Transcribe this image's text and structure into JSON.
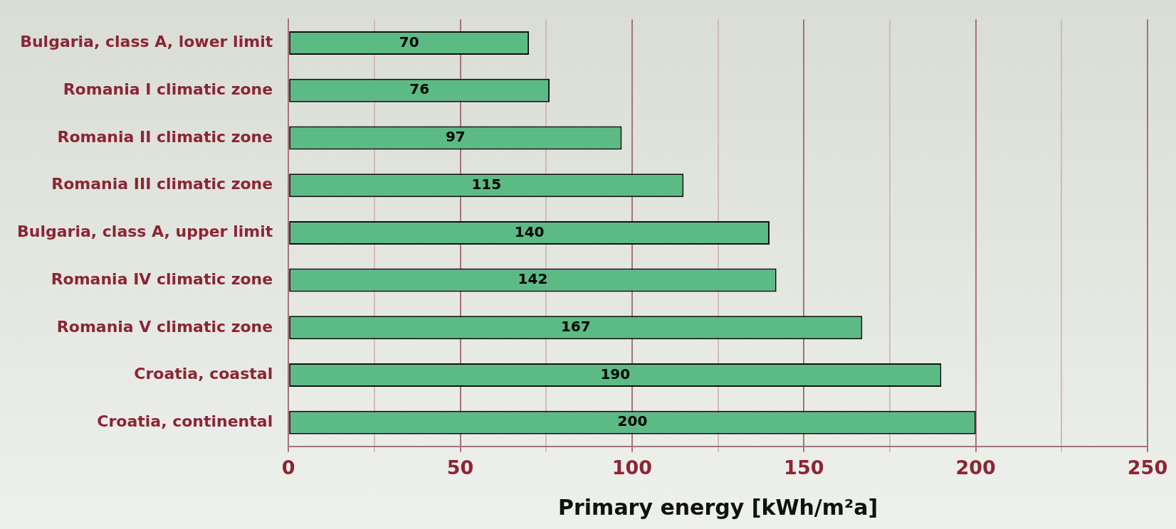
{
  "chart_data": {
    "type": "bar",
    "orientation": "horizontal",
    "xlabel": "Primary energy [kWh/m²a]",
    "categories": [
      "Bulgaria, class A, lower limit",
      "Romania I climatic zone",
      "Romania II climatic zone",
      "Romania III climatic zone",
      "Bulgaria, class A, upper limit",
      "Romania IV climatic zone",
      "Romania V climatic zone",
      "Croatia, coastal",
      "Croatia, continental"
    ],
    "values": [
      70,
      76,
      97,
      115,
      140,
      142,
      167,
      190,
      200
    ],
    "color": "#5cbb84",
    "xlim": [
      0,
      250
    ],
    "xticks": [
      0,
      {
        "value": 25,
        "label": null
      },
      50,
      {
        "value": 75,
        "label": null
      },
      100,
      {
        "value": 125,
        "label": null
      },
      150,
      {
        "value": 175,
        "label": null
      },
      200,
      {
        "value": 225,
        "label": null
      },
      250
    ],
    "grid": "x",
    "data_labels": true
  }
}
